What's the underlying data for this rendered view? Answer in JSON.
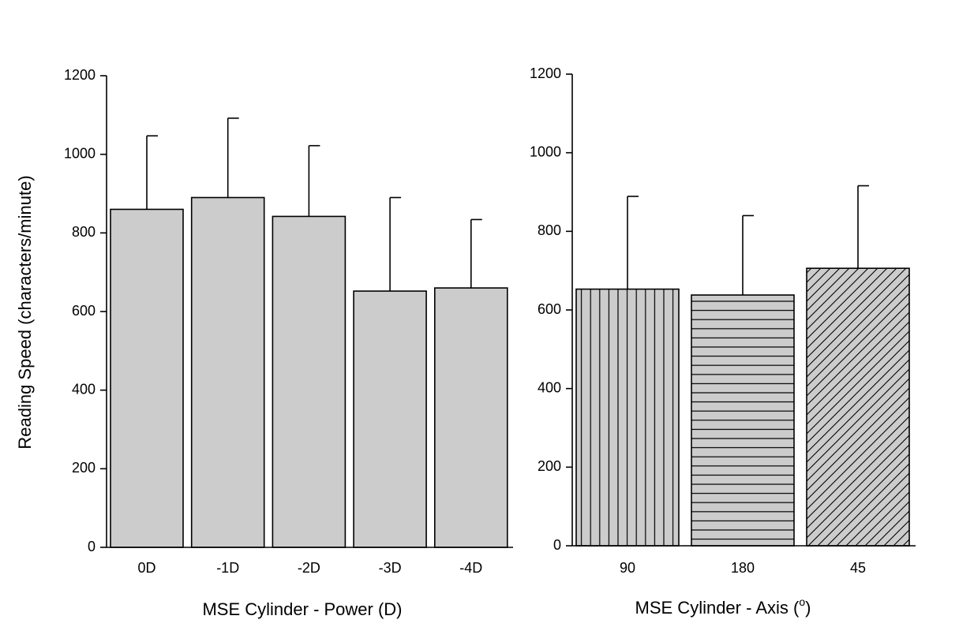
{
  "chart_data": [
    {
      "type": "bar",
      "title": "",
      "ylabel": "Reading Speed (characters/minute)",
      "xlabel": "MSE Cylinder - Power (D)",
      "ylim": [
        0,
        1200
      ],
      "yticks": [
        0,
        200,
        400,
        600,
        800,
        1000,
        1200
      ],
      "categories": [
        "0D",
        "-1D",
        "-2D",
        "-3D",
        "-4D"
      ],
      "values": [
        860,
        890,
        842,
        652,
        660
      ],
      "error_upper": [
        1047,
        1092,
        1022,
        890,
        834
      ],
      "bar_fill": "#cccccc",
      "patterns": [
        "none",
        "none",
        "none",
        "none",
        "none"
      ],
      "grid": false
    },
    {
      "type": "bar",
      "title": "",
      "ylabel": "",
      "xlabel_prefix": "MSE Cylinder - Axis (",
      "xlabel_superscript": "o",
      "xlabel_suffix": ")",
      "ylim": [
        0,
        1200
      ],
      "yticks": [
        0,
        200,
        400,
        600,
        800,
        1000,
        1200
      ],
      "categories": [
        "90",
        "180",
        "45"
      ],
      "values": [
        653,
        638,
        706
      ],
      "error_upper": [
        889,
        840,
        916
      ],
      "bar_fill": "#cccccc",
      "patterns": [
        "vertical",
        "horizontal",
        "diagonal"
      ],
      "grid": false
    }
  ]
}
